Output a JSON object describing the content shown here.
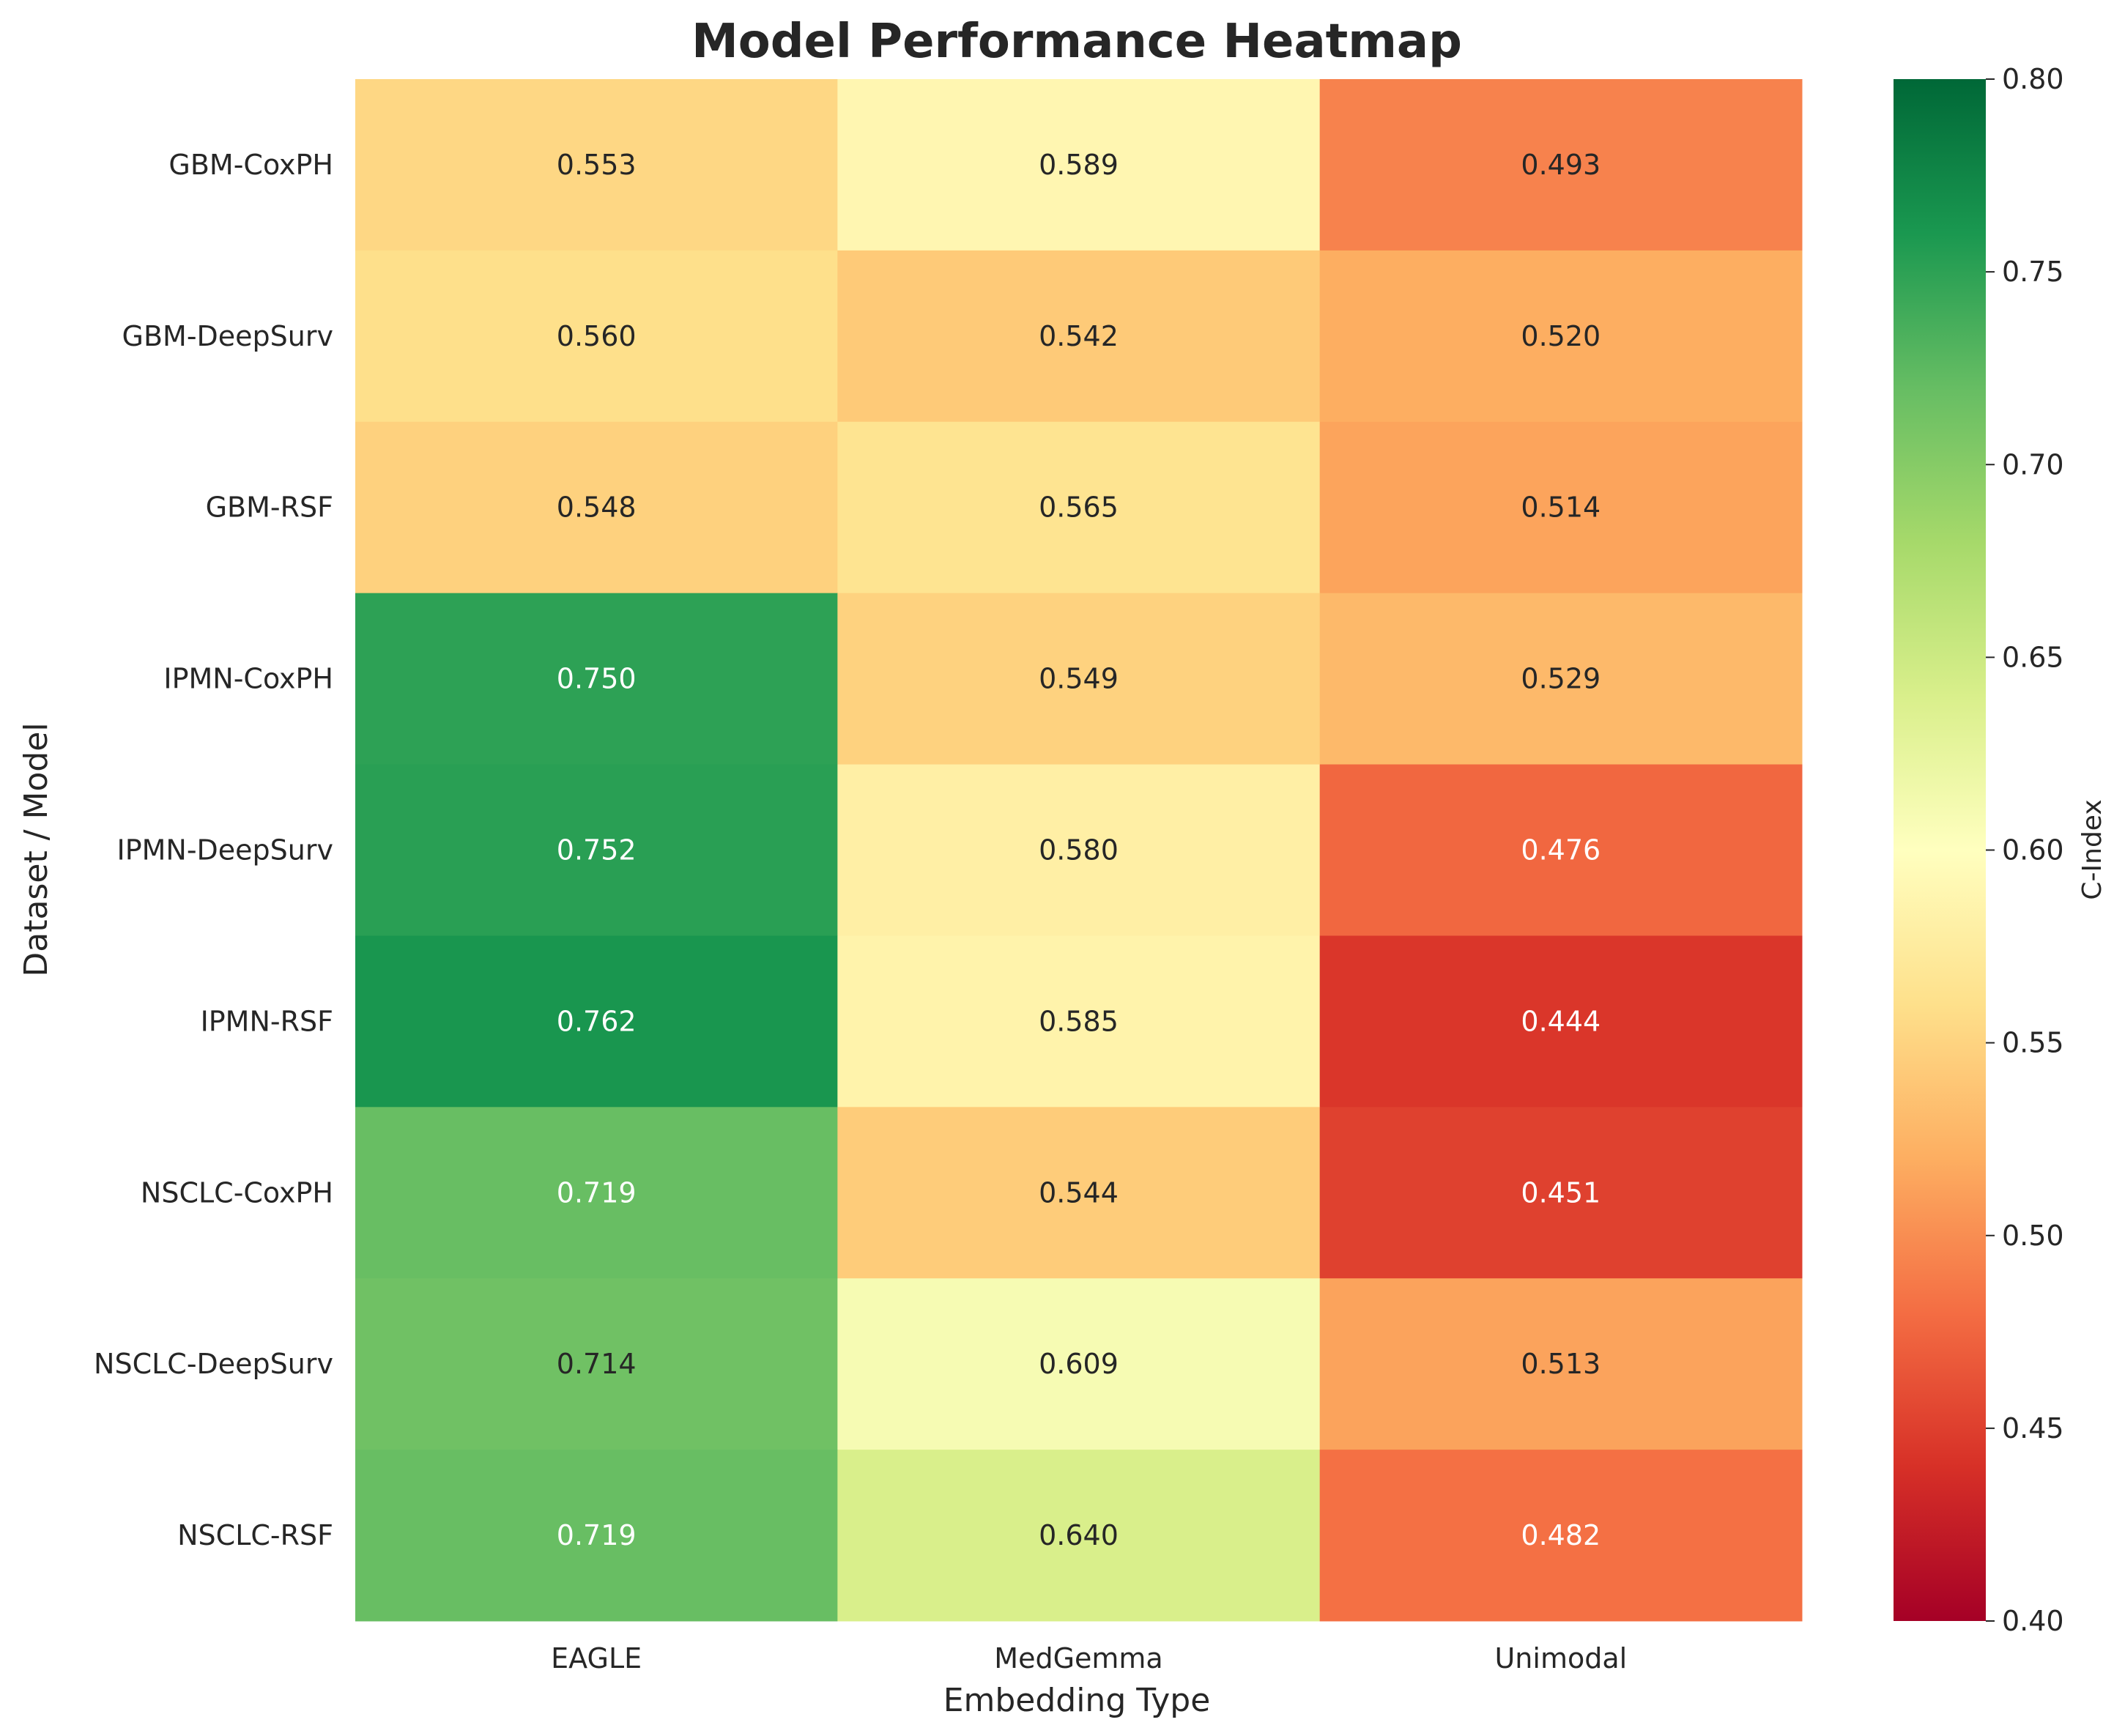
{
  "chart_data": {
    "type": "heatmap",
    "title": "Model Performance Heatmap",
    "xlabel": "Embedding Type",
    "ylabel": "Dataset / Model",
    "columns": [
      "EAGLE",
      "MedGemma",
      "Unimodal"
    ],
    "rows": [
      "GBM-CoxPH",
      "GBM-DeepSurv",
      "GBM-RSF",
      "IPMN-CoxPH",
      "IPMN-DeepSurv",
      "IPMN-RSF",
      "NSCLC-CoxPH",
      "NSCLC-DeepSurv",
      "NSCLC-RSF"
    ],
    "values": [
      [
        0.553,
        0.589,
        0.493
      ],
      [
        0.56,
        0.542,
        0.52
      ],
      [
        0.548,
        0.565,
        0.514
      ],
      [
        0.75,
        0.549,
        0.529
      ],
      [
        0.752,
        0.58,
        0.476
      ],
      [
        0.762,
        0.585,
        0.444
      ],
      [
        0.719,
        0.544,
        0.451
      ],
      [
        0.714,
        0.609,
        0.513
      ],
      [
        0.719,
        0.64,
        0.482
      ]
    ],
    "value_format": "0.000",
    "colorbar": {
      "label": "C-Index",
      "range": [
        0.4,
        0.8
      ],
      "ticks": [
        "0.40",
        "0.45",
        "0.50",
        "0.55",
        "0.60",
        "0.65",
        "0.70",
        "0.75",
        "0.80"
      ],
      "colormap": "RdYlGn",
      "colormap_stops": [
        "#a50026",
        "#d73027",
        "#f46d43",
        "#fdae61",
        "#fee08b",
        "#ffffbf",
        "#d9ef8b",
        "#a6d96a",
        "#66bd63",
        "#1a9850",
        "#006837"
      ]
    },
    "text_colors": {
      "dark": "#262626",
      "light": "#ffffff"
    }
  }
}
